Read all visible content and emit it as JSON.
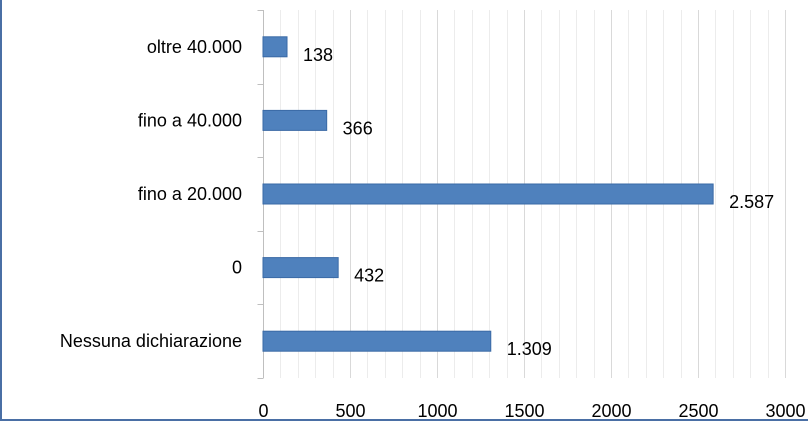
{
  "chart_data": {
    "type": "bar",
    "orientation": "horizontal",
    "categories": [
      "Nessuna dichiarazione",
      "0",
      "fino a 20.000",
      "fino a 40.000",
      "oltre 40.000"
    ],
    "values": [
      1309,
      432,
      2587,
      366,
      138
    ],
    "data_labels": [
      "1.309",
      "432",
      "2.587",
      "366",
      "138"
    ],
    "xlim": [
      0,
      3000
    ],
    "x_ticks": [
      0,
      500,
      1000,
      1500,
      2000,
      2500,
      3000
    ],
    "x_tick_labels": [
      "0",
      "500",
      "1000",
      "1500",
      "2000",
      "2500",
      "3000"
    ],
    "minor_grid_step": 100,
    "grid": true,
    "legend": "none",
    "bar_color": "#4f81bd",
    "title": "",
    "xlabel": "",
    "ylabel": ""
  }
}
